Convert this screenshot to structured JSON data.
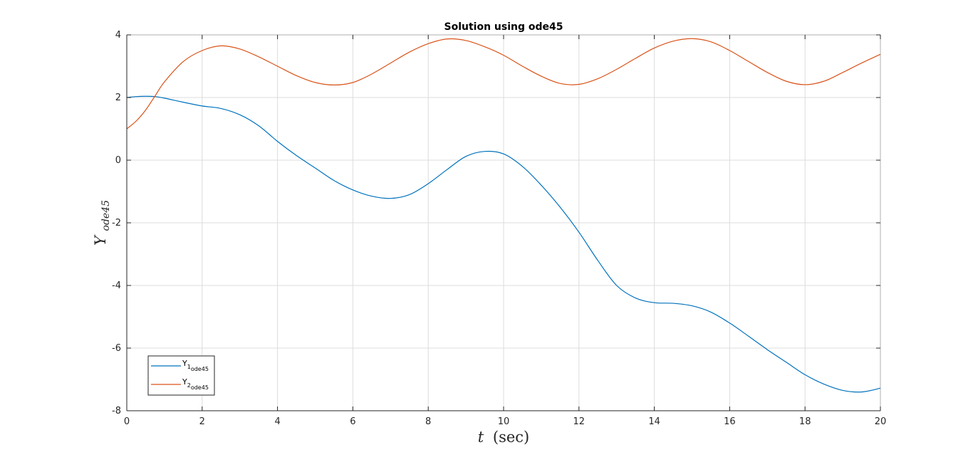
{
  "chart_data": {
    "type": "line",
    "title": "Solution using ode45",
    "xlabel": {
      "var": "t",
      "unit": "(sec)"
    },
    "ylabel": {
      "base": "Y",
      "sub": "ode45"
    },
    "xlim": [
      0,
      20
    ],
    "ylim": [
      -8,
      4
    ],
    "xticks": [
      0,
      2,
      4,
      6,
      8,
      10,
      12,
      14,
      16,
      18,
      20
    ],
    "yticks": [
      -8,
      -6,
      -4,
      -2,
      0,
      2,
      4
    ],
    "xtick_labels": [
      "0",
      "2",
      "4",
      "6",
      "8",
      "10",
      "12",
      "14",
      "16",
      "18",
      "20"
    ],
    "ytick_labels": [
      "-8",
      "-6",
      "-4",
      "-2",
      "0",
      "2",
      "4"
    ],
    "grid": true,
    "legend_position": "bottom-left",
    "series": [
      {
        "name": "Y",
        "name_sub": "1",
        "name_sub2": "ode45",
        "color": "#0072BD",
        "x": [
          0,
          0.25,
          0.5,
          0.75,
          1,
          1.5,
          2,
          2.5,
          3,
          3.5,
          4,
          4.5,
          5,
          5.5,
          6,
          6.5,
          7,
          7.5,
          8,
          8.5,
          9,
          9.5,
          10,
          10.5,
          11,
          11.5,
          12,
          12.5,
          13,
          13.5,
          14,
          14.5,
          15,
          15.5,
          16,
          16.5,
          17,
          17.5,
          18,
          18.5,
          19,
          19.5,
          20
        ],
        "y": [
          2.0,
          2.03,
          2.04,
          2.03,
          1.98,
          1.85,
          1.73,
          1.65,
          1.45,
          1.1,
          0.6,
          0.15,
          -0.25,
          -0.65,
          -0.95,
          -1.15,
          -1.22,
          -1.1,
          -0.75,
          -0.3,
          0.12,
          0.28,
          0.2,
          -0.2,
          -0.8,
          -1.5,
          -2.3,
          -3.2,
          -4.0,
          -4.4,
          -4.55,
          -4.57,
          -4.65,
          -4.85,
          -5.2,
          -5.62,
          -6.05,
          -6.45,
          -6.85,
          -7.15,
          -7.35,
          -7.4,
          -7.28
        ]
      },
      {
        "name": "Y",
        "name_sub": "2",
        "name_sub2": "ode45",
        "color": "#D95319",
        "x": [
          0,
          0.25,
          0.5,
          0.75,
          1,
          1.5,
          2,
          2.5,
          3,
          3.5,
          4,
          4.5,
          5,
          5.5,
          6,
          6.5,
          7,
          7.5,
          8,
          8.5,
          9,
          9.5,
          10,
          10.5,
          11,
          11.5,
          12,
          12.5,
          13,
          13.5,
          14,
          14.5,
          15,
          15.5,
          16,
          16.5,
          17,
          17.5,
          18,
          18.5,
          19,
          19.5,
          20
        ],
        "y": [
          1.0,
          1.25,
          1.6,
          2.05,
          2.5,
          3.15,
          3.5,
          3.65,
          3.55,
          3.3,
          3.0,
          2.7,
          2.48,
          2.4,
          2.48,
          2.75,
          3.1,
          3.45,
          3.72,
          3.87,
          3.82,
          3.62,
          3.35,
          3.0,
          2.68,
          2.45,
          2.42,
          2.6,
          2.9,
          3.25,
          3.58,
          3.8,
          3.88,
          3.78,
          3.5,
          3.15,
          2.8,
          2.52,
          2.41,
          2.52,
          2.8,
          3.1,
          3.38
        ]
      }
    ]
  }
}
